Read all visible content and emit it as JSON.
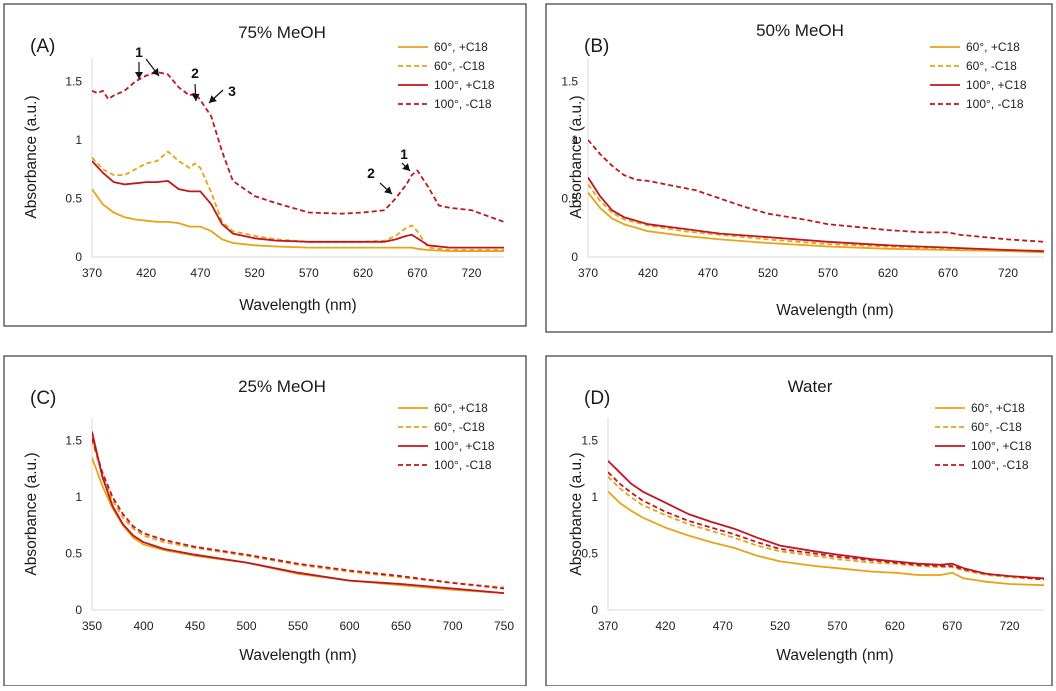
{
  "colors": {
    "c60": "#E8A317",
    "c100": "#C0161E"
  },
  "chart_data": [
    {
      "type": "line",
      "panel": "(A)",
      "title": "75% MeOH",
      "xlabel": "Wavelength (nm)",
      "ylabel": "Absorbance (a.u.)",
      "xlim": [
        370,
        750
      ],
      "ylim": [
        0,
        1.7
      ],
      "xticks": [
        "370",
        "420",
        "470",
        "520",
        "570",
        "620",
        "670",
        "720"
      ],
      "yticks": [
        "0",
        "0.5",
        "1",
        "1.5"
      ],
      "grid": false,
      "legend_position": "top-right",
      "series": [
        {
          "name": "60°, +C18",
          "color": "#E8A317",
          "dash": false,
          "x": [
            370,
            380,
            390,
            400,
            410,
            420,
            430,
            440,
            450,
            460,
            470,
            480,
            490,
            500,
            520,
            540,
            570,
            600,
            620,
            640,
            650,
            660,
            665,
            670,
            680,
            700,
            720,
            750
          ],
          "y": [
            0.58,
            0.45,
            0.38,
            0.34,
            0.32,
            0.31,
            0.3,
            0.3,
            0.29,
            0.26,
            0.26,
            0.22,
            0.15,
            0.12,
            0.1,
            0.09,
            0.08,
            0.08,
            0.08,
            0.08,
            0.08,
            0.08,
            0.08,
            0.07,
            0.06,
            0.05,
            0.05,
            0.05
          ]
        },
        {
          "name": "60°, -C18",
          "color": "#E8A317",
          "dash": true,
          "x": [
            370,
            380,
            390,
            400,
            410,
            420,
            430,
            440,
            450,
            460,
            465,
            470,
            480,
            490,
            500,
            520,
            540,
            570,
            600,
            620,
            640,
            650,
            660,
            665,
            670,
            680,
            700,
            720,
            750
          ],
          "y": [
            0.85,
            0.75,
            0.7,
            0.7,
            0.75,
            0.8,
            0.82,
            0.9,
            0.82,
            0.76,
            0.8,
            0.76,
            0.55,
            0.3,
            0.22,
            0.18,
            0.15,
            0.13,
            0.13,
            0.13,
            0.14,
            0.18,
            0.25,
            0.27,
            0.22,
            0.08,
            0.06,
            0.06,
            0.06
          ]
        },
        {
          "name": "100°, +C18",
          "color": "#C0161E",
          "dash": false,
          "x": [
            370,
            380,
            390,
            400,
            410,
            420,
            430,
            440,
            450,
            460,
            470,
            480,
            490,
            500,
            520,
            540,
            570,
            600,
            620,
            640,
            650,
            660,
            665,
            670,
            680,
            700,
            720,
            750
          ],
          "y": [
            0.82,
            0.72,
            0.64,
            0.62,
            0.63,
            0.64,
            0.64,
            0.65,
            0.58,
            0.56,
            0.56,
            0.45,
            0.28,
            0.2,
            0.16,
            0.14,
            0.13,
            0.13,
            0.13,
            0.13,
            0.15,
            0.18,
            0.19,
            0.16,
            0.1,
            0.08,
            0.08,
            0.08
          ]
        },
        {
          "name": "100°, -C18",
          "color": "#C0161E",
          "dash": true,
          "x": [
            370,
            375,
            380,
            385,
            390,
            400,
            410,
            420,
            430,
            440,
            450,
            460,
            465,
            470,
            480,
            490,
            500,
            520,
            540,
            570,
            600,
            620,
            640,
            650,
            660,
            665,
            670,
            680,
            690,
            700,
            720,
            750
          ],
          "y": [
            1.42,
            1.4,
            1.42,
            1.35,
            1.38,
            1.42,
            1.5,
            1.55,
            1.58,
            1.56,
            1.45,
            1.38,
            1.4,
            1.34,
            1.2,
            0.9,
            0.65,
            0.52,
            0.46,
            0.38,
            0.37,
            0.38,
            0.4,
            0.5,
            0.62,
            0.7,
            0.74,
            0.6,
            0.44,
            0.42,
            0.4,
            0.3
          ]
        }
      ],
      "annotations": [
        "1",
        "2",
        "3",
        "1",
        "2"
      ]
    },
    {
      "type": "line",
      "panel": "(B)",
      "title": "50% MeOH",
      "xlabel": "Wavelength (nm)",
      "ylabel": "Absorbance (a.u.)",
      "xlim": [
        370,
        750
      ],
      "ylim": [
        0,
        1.7
      ],
      "xticks": [
        "370",
        "420",
        "470",
        "520",
        "570",
        "620",
        "670",
        "720"
      ],
      "yticks": [
        "0",
        "0.5",
        "1",
        "1.5"
      ],
      "grid": false,
      "legend_position": "top-right",
      "series": [
        {
          "name": "60°, +C18",
          "color": "#E8A317",
          "dash": false,
          "x": [
            370,
            380,
            390,
            400,
            420,
            450,
            480,
            520,
            570,
            620,
            670,
            720,
            750
          ],
          "y": [
            0.55,
            0.42,
            0.33,
            0.28,
            0.22,
            0.18,
            0.15,
            0.12,
            0.09,
            0.07,
            0.06,
            0.05,
            0.04
          ]
        },
        {
          "name": "60°, -C18",
          "color": "#E8A317",
          "dash": true,
          "x": [
            370,
            380,
            390,
            400,
            420,
            450,
            480,
            520,
            570,
            620,
            670,
            720,
            750
          ],
          "y": [
            0.62,
            0.48,
            0.38,
            0.32,
            0.27,
            0.22,
            0.19,
            0.15,
            0.11,
            0.09,
            0.07,
            0.06,
            0.05
          ]
        },
        {
          "name": "100°, +C18",
          "color": "#C0161E",
          "dash": false,
          "x": [
            370,
            380,
            390,
            400,
            420,
            450,
            480,
            520,
            570,
            620,
            670,
            720,
            750
          ],
          "y": [
            0.68,
            0.52,
            0.4,
            0.34,
            0.28,
            0.24,
            0.2,
            0.17,
            0.13,
            0.1,
            0.08,
            0.06,
            0.05
          ]
        },
        {
          "name": "100°, -C18",
          "color": "#C0161E",
          "dash": true,
          "x": [
            370,
            380,
            390,
            400,
            410,
            420,
            440,
            460,
            480,
            500,
            520,
            550,
            570,
            600,
            620,
            650,
            670,
            680,
            700,
            720,
            750
          ],
          "y": [
            1.0,
            0.88,
            0.78,
            0.7,
            0.66,
            0.65,
            0.61,
            0.57,
            0.5,
            0.43,
            0.37,
            0.32,
            0.28,
            0.25,
            0.23,
            0.21,
            0.21,
            0.19,
            0.17,
            0.15,
            0.13
          ]
        }
      ]
    },
    {
      "type": "line",
      "panel": "(C)",
      "title": "25% MeOH",
      "xlabel": "Wavelength (nm)",
      "ylabel": "Absorbance (a.u.)",
      "xlim": [
        350,
        750
      ],
      "ylim": [
        0,
        1.7
      ],
      "xticks": [
        "350",
        "400",
        "450",
        "500",
        "550",
        "600",
        "650",
        "700",
        "750"
      ],
      "yticks": [
        "0",
        "0.5",
        "1",
        "1.5"
      ],
      "grid": false,
      "legend_position": "top-right",
      "series": [
        {
          "name": "60°, +C18",
          "color": "#E8A317",
          "dash": false,
          "x": [
            350,
            360,
            370,
            380,
            390,
            400,
            420,
            450,
            500,
            550,
            600,
            650,
            700,
            750
          ],
          "y": [
            1.35,
            1.1,
            0.9,
            0.75,
            0.64,
            0.58,
            0.53,
            0.48,
            0.42,
            0.32,
            0.26,
            0.22,
            0.18,
            0.15
          ]
        },
        {
          "name": "60°, -C18",
          "color": "#E8A317",
          "dash": true,
          "x": [
            350,
            360,
            370,
            380,
            390,
            400,
            420,
            450,
            500,
            550,
            600,
            650,
            700,
            750
          ],
          "y": [
            1.5,
            1.2,
            0.97,
            0.82,
            0.72,
            0.66,
            0.6,
            0.55,
            0.48,
            0.4,
            0.34,
            0.29,
            0.24,
            0.2
          ]
        },
        {
          "name": "100°, +C18",
          "color": "#C0161E",
          "dash": false,
          "x": [
            350,
            360,
            370,
            380,
            390,
            400,
            420,
            450,
            500,
            550,
            600,
            650,
            700,
            750
          ],
          "y": [
            1.58,
            1.18,
            0.92,
            0.76,
            0.66,
            0.6,
            0.54,
            0.49,
            0.42,
            0.33,
            0.26,
            0.23,
            0.19,
            0.15
          ]
        },
        {
          "name": "100°, -C18",
          "color": "#C0161E",
          "dash": true,
          "x": [
            350,
            360,
            370,
            380,
            390,
            400,
            420,
            450,
            500,
            550,
            600,
            650,
            700,
            750
          ],
          "y": [
            1.52,
            1.22,
            1.0,
            0.85,
            0.74,
            0.68,
            0.62,
            0.56,
            0.49,
            0.41,
            0.35,
            0.3,
            0.24,
            0.19
          ]
        }
      ]
    },
    {
      "type": "line",
      "panel": "(D)",
      "title": "Water",
      "xlabel": "Wavelength (nm)",
      "ylabel": "Absorbance (a.u.)",
      "xlim": [
        370,
        750
      ],
      "ylim": [
        0,
        1.7
      ],
      "xticks": [
        "370",
        "420",
        "470",
        "520",
        "570",
        "620",
        "670",
        "720"
      ],
      "yticks": [
        "0",
        "0.5",
        "1",
        "1.5"
      ],
      "grid": false,
      "legend_position": "top-right",
      "series": [
        {
          "name": "60°, +C18",
          "color": "#E8A317",
          "dash": false,
          "x": [
            370,
            380,
            390,
            400,
            420,
            440,
            460,
            480,
            500,
            520,
            550,
            570,
            600,
            620,
            640,
            660,
            670,
            680,
            700,
            720,
            750
          ],
          "y": [
            1.05,
            0.95,
            0.88,
            0.82,
            0.73,
            0.66,
            0.6,
            0.55,
            0.48,
            0.43,
            0.39,
            0.37,
            0.34,
            0.33,
            0.31,
            0.31,
            0.33,
            0.28,
            0.25,
            0.23,
            0.22
          ]
        },
        {
          "name": "60°, -C18",
          "color": "#E8A317",
          "dash": true,
          "x": [
            370,
            380,
            390,
            400,
            420,
            440,
            460,
            480,
            500,
            520,
            550,
            570,
            600,
            620,
            640,
            660,
            670,
            680,
            700,
            720,
            750
          ],
          "y": [
            1.18,
            1.08,
            1.0,
            0.93,
            0.84,
            0.76,
            0.7,
            0.64,
            0.57,
            0.52,
            0.48,
            0.45,
            0.42,
            0.41,
            0.39,
            0.38,
            0.38,
            0.35,
            0.31,
            0.29,
            0.27
          ]
        },
        {
          "name": "100°, +C18",
          "color": "#C0161E",
          "dash": false,
          "x": [
            370,
            380,
            390,
            400,
            420,
            440,
            460,
            480,
            500,
            520,
            550,
            570,
            600,
            620,
            640,
            660,
            670,
            680,
            700,
            720,
            750
          ],
          "y": [
            1.32,
            1.22,
            1.12,
            1.05,
            0.95,
            0.85,
            0.78,
            0.72,
            0.64,
            0.57,
            0.52,
            0.49,
            0.45,
            0.43,
            0.41,
            0.4,
            0.41,
            0.37,
            0.32,
            0.3,
            0.28
          ]
        },
        {
          "name": "100°, -C18",
          "color": "#C0161E",
          "dash": true,
          "x": [
            370,
            380,
            390,
            400,
            420,
            440,
            460,
            480,
            500,
            520,
            550,
            570,
            600,
            620,
            640,
            660,
            670,
            680,
            700,
            720,
            750
          ],
          "y": [
            1.22,
            1.12,
            1.04,
            0.97,
            0.87,
            0.79,
            0.73,
            0.67,
            0.6,
            0.54,
            0.5,
            0.47,
            0.44,
            0.42,
            0.4,
            0.39,
            0.39,
            0.36,
            0.32,
            0.3,
            0.27
          ]
        }
      ]
    }
  ]
}
